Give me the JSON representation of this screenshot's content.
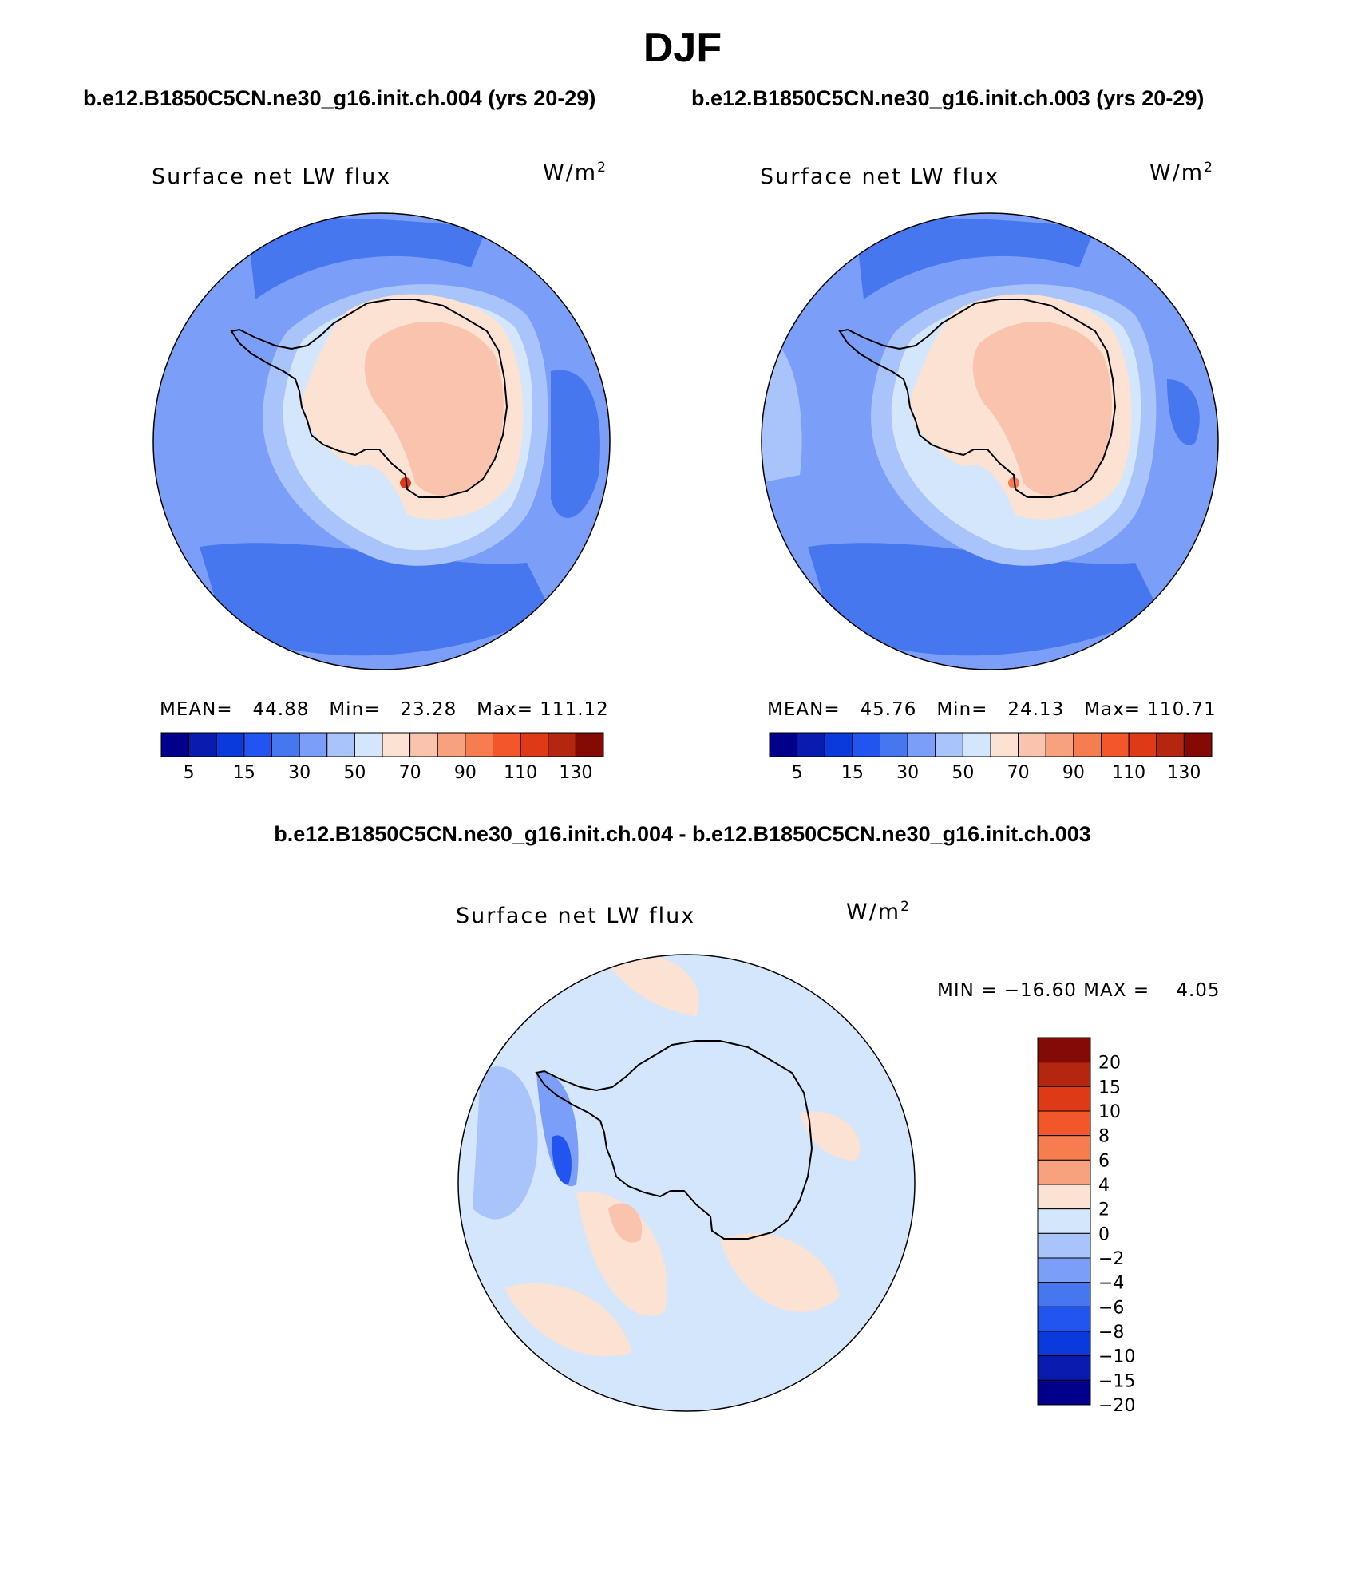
{
  "figure": {
    "title": "DJF",
    "diff_title": "b.e12.B1850C5CN.ne30_g16.init.ch.004 - b.e12.B1850C5CN.ne30_g16.init.ch.003"
  },
  "panels": [
    {
      "case_title": "b.e12.B1850C5CN.ne30_g16.init.ch.004 (yrs 20-29)",
      "variable": "Surface net LW flux",
      "units_base": "W/m",
      "units_exp": "2",
      "mean_label": "MEAN=",
      "mean": "44.88",
      "min_label": "Min=",
      "min": "23.28",
      "max_label": "Max=",
      "max": "111.12"
    },
    {
      "case_title": "b.e12.B1850C5CN.ne30_g16.init.ch.003 (yrs 20-29)",
      "variable": "Surface net LW flux",
      "units_base": "W/m",
      "units_exp": "2",
      "mean_label": "MEAN=",
      "mean": "45.76",
      "min_label": "Min=",
      "min": "24.13",
      "max_label": "Max=",
      "max": "110.71"
    }
  ],
  "diff_panel": {
    "variable": "Surface net LW flux",
    "units_base": "W/m",
    "units_exp": "2",
    "min_label": "MIN =",
    "min": "−16.60",
    "max_label": "MAX =",
    "max": "4.05"
  },
  "chart_data": [
    {
      "type": "heatmap",
      "projection": "south polar stereographic",
      "title": "Surface net LW flux",
      "units": "W/m2",
      "stats": {
        "mean": 44.88,
        "min": 23.28,
        "max": 111.12
      },
      "colorbar": {
        "orientation": "horizontal",
        "colors": [
          "#00008b",
          "#0a1cb0",
          "#0a3adc",
          "#2255f0",
          "#4677ee",
          "#7b9ff8",
          "#a9c4fb",
          "#d4e6fb",
          "#fbe2d3",
          "#f9c3ad",
          "#f7a17f",
          "#f57d4f",
          "#f2562a",
          "#df3a18",
          "#b52610",
          "#840a05"
        ],
        "tick_labels": [
          "5",
          "15",
          "30",
          "50",
          "70",
          "90",
          "110",
          "130"
        ]
      }
    },
    {
      "type": "heatmap",
      "projection": "south polar stereographic",
      "title": "Surface net LW flux",
      "units": "W/m2",
      "stats": {
        "mean": 45.76,
        "min": 24.13,
        "max": 110.71
      },
      "colorbar": {
        "orientation": "horizontal",
        "colors": [
          "#00008b",
          "#0a1cb0",
          "#0a3adc",
          "#2255f0",
          "#4677ee",
          "#7b9ff8",
          "#a9c4fb",
          "#d4e6fb",
          "#fbe2d3",
          "#f9c3ad",
          "#f7a17f",
          "#f57d4f",
          "#f2562a",
          "#df3a18",
          "#b52610",
          "#840a05"
        ],
        "tick_labels": [
          "5",
          "15",
          "30",
          "50",
          "70",
          "90",
          "110",
          "130"
        ]
      }
    },
    {
      "type": "heatmap",
      "projection": "south polar stereographic",
      "title": "Surface net LW flux",
      "units": "W/m2",
      "stats": {
        "min": -16.6,
        "max": 4.05
      },
      "colorbar": {
        "orientation": "vertical",
        "colors": [
          "#840a05",
          "#b52610",
          "#df3a18",
          "#f2562a",
          "#f57d4f",
          "#f7a17f",
          "#fbe2d3",
          "#d4e6fb",
          "#a9c4fb",
          "#7b9ff8",
          "#4677ee",
          "#2255f0",
          "#0a3adc",
          "#0a1cb0",
          "#00008b"
        ],
        "tick_labels": [
          "20",
          "15",
          "10",
          "8",
          "6",
          "4",
          "2",
          "0",
          "−2",
          "−4",
          "−6",
          "−8",
          "−10",
          "−15",
          "−20"
        ]
      }
    }
  ]
}
